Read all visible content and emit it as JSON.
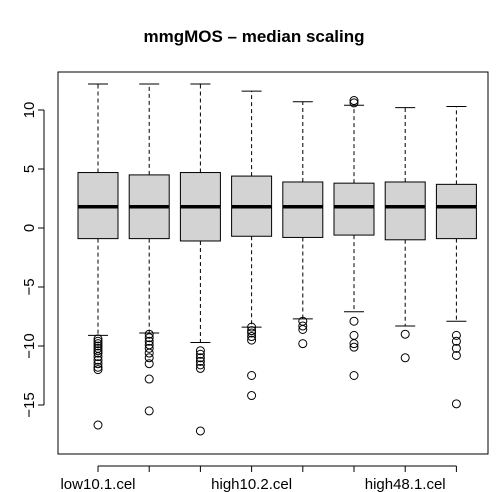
{
  "chart_data": {
    "type": "boxplot",
    "title": "mmgMOS – median scaling",
    "xlabel": "",
    "ylabel": "",
    "ylim": [
      -18,
      13
    ],
    "yticks": [
      10,
      5,
      0,
      -5,
      -10,
      -15
    ],
    "ytick_labels": [
      "10",
      "5",
      "0",
      "−5",
      "−10",
      "−15"
    ],
    "xtick_labels_shown": [
      {
        "index": 0,
        "label": "low10.1.cel"
      },
      {
        "index": 3,
        "label": "high10.2.cel"
      },
      {
        "index": 6,
        "label": "high48.1.cel"
      }
    ],
    "box_fill": "#d3d3d3",
    "outlier_symbol": "open-circle",
    "boxes": [
      {
        "whisker_low": -9.1,
        "q1": -0.9,
        "median": 1.8,
        "q3": 4.7,
        "whisker_high": 12.2,
        "outliers": [
          -9.4,
          -9.6,
          -9.8,
          -10.0,
          -10.2,
          -10.4,
          -10.6,
          -10.9,
          -11.2,
          -11.5,
          -11.8,
          -12.0,
          -16.7
        ]
      },
      {
        "whisker_low": -8.9,
        "q1": -0.9,
        "median": 1.8,
        "q3": 4.5,
        "whisker_high": 12.2,
        "outliers": [
          -9.0,
          -9.3,
          -9.6,
          -9.9,
          -10.2,
          -10.6,
          -11.0,
          -11.5,
          -12.8,
          -15.5
        ]
      },
      {
        "whisker_low": -9.7,
        "q1": -1.1,
        "median": 1.8,
        "q3": 4.7,
        "whisker_high": 12.2,
        "outliers": [
          -10.4,
          -10.7,
          -11.0,
          -11.3,
          -11.6,
          -11.9,
          -17.2
        ]
      },
      {
        "whisker_low": -8.4,
        "q1": -0.7,
        "median": 1.8,
        "q3": 4.4,
        "whisker_high": 11.6,
        "outliers": [
          -8.4,
          -8.7,
          -8.9,
          -9.2,
          -9.5,
          -12.5,
          -14.2
        ]
      },
      {
        "whisker_low": -7.7,
        "q1": -0.8,
        "median": 1.8,
        "q3": 3.9,
        "whisker_high": 10.7,
        "outliers": [
          -7.9,
          -8.3,
          -8.6,
          -9.8
        ]
      },
      {
        "whisker_low": -7.1,
        "q1": -0.6,
        "median": 1.8,
        "q3": 3.8,
        "whisker_high": 10.4,
        "outliers": [
          10.6,
          10.8,
          -7.9,
          -9.1,
          -9.8,
          -10.1,
          -12.5
        ]
      },
      {
        "whisker_low": -8.3,
        "q1": -1.0,
        "median": 1.8,
        "q3": 3.9,
        "whisker_high": 10.2,
        "outliers": [
          -9.0,
          -11.0
        ]
      },
      {
        "whisker_low": -7.9,
        "q1": -0.9,
        "median": 1.8,
        "q3": 3.7,
        "whisker_high": 10.3,
        "outliers": [
          -9.1,
          -9.6,
          -10.2,
          -10.8,
          -14.9
        ]
      }
    ]
  }
}
